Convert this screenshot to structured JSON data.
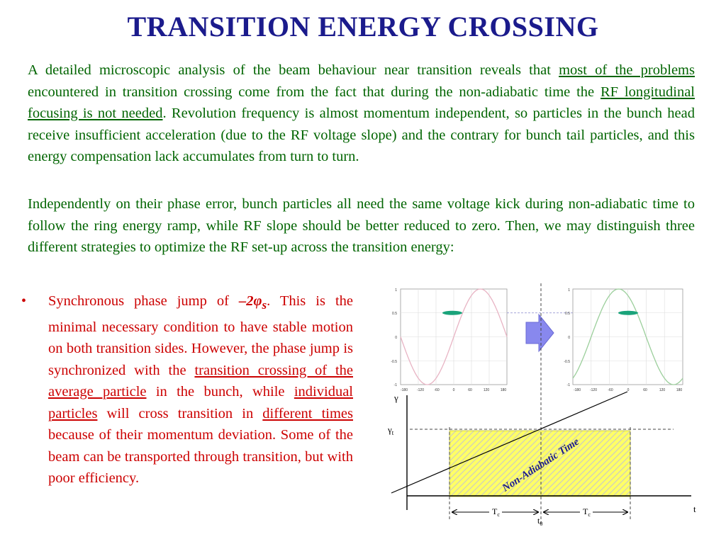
{
  "slide": {
    "title": "TRANSITION ENERGY CROSSING",
    "para1": {
      "t1": "A detailed microscopic analysis of the beam behaviour near transition reveals that ",
      "u1": "most of the problems",
      "t2": " encountered in transition crossing come from the fact that during the non-adiabatic time the ",
      "u2": "RF longitudinal focusing is not needed",
      "t3": ". Revolution frequency is almost momentum independent, so particles in the bunch head receive insufficient acceleration (due to the RF voltage slope) and the contrary for bunch tail particles, and this energy compensation lack accumulates from turn to turn."
    },
    "para2": "Independently on their phase error, bunch particles all need the same voltage kick during non-adiabatic time to follow the ring energy ramp, while RF slope should be better reduced to zero. Then, we may distinguish three different strategies to optimize the RF set-up across the transition energy:",
    "bullet": {
      "marker": "•",
      "t1": "Synchronous phase jump of ",
      "math_main": "–2φ",
      "math_sub": "s",
      "t2": ". This is the minimal necessary condition to have stable motion on both transition sides. However, the phase jump is synchronized with the ",
      "u1": "transition crossing of the average particle",
      "t3": " in the bunch, while ",
      "u2": "individual particles",
      "t4": " will cross transition in ",
      "u3": "different times",
      "t5": " because of their momentum deviation. Some of the beam can be transported through transition, but with poor efficiency."
    }
  },
  "figure": {
    "left_plot": {
      "y_ticks": [
        "1",
        "0.5",
        "0",
        "-0.5",
        "-1"
      ],
      "x_ticks": [
        "-180",
        "-120",
        "-60",
        "0",
        "60",
        "120",
        "180"
      ]
    },
    "right_plot": {
      "y_ticks": [
        "1",
        "0.5",
        "0",
        "-0.5",
        "-1"
      ],
      "x_ticks": [
        "-180",
        "-120",
        "-60",
        "0",
        "60",
        "120",
        "180"
      ]
    },
    "timeline": {
      "y_axis_label": "γ",
      "gamma_t_label": "γ",
      "gamma_t_sub": "t",
      "x_axis_label": "t",
      "tc_left": "T",
      "tc_left_sub": "c",
      "tc_right": "T",
      "tc_right_sub": "c",
      "t0": "t",
      "t0_sub": "0",
      "region_label": "Non-Adiabatic Time"
    },
    "colors": {
      "region_fill": "#ffff66",
      "region_hatch": "#c8c8c8",
      "region_label": "#1b1b8c",
      "arrow": "#8888ee",
      "bunch": "#1aa37a",
      "left_wave": "#e8b4c4",
      "right_wave": "#9ccf9c"
    }
  }
}
